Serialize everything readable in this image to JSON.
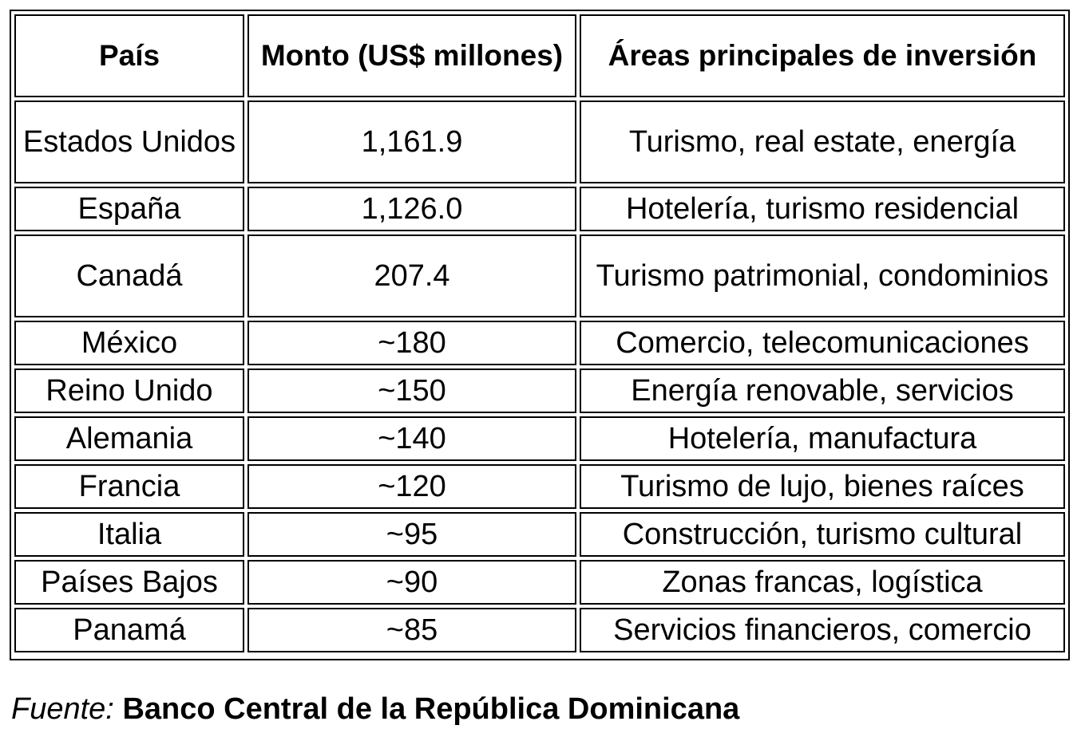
{
  "table": {
    "headers": [
      "País",
      "Monto (US$ millones)",
      "Áreas principales de inversión"
    ],
    "rows": [
      {
        "pais": "Estados Unidos",
        "monto": "1,161.9",
        "areas": "Turismo, real estate, energía"
      },
      {
        "pais": "España",
        "monto": "1,126.0",
        "areas": "Hotelería, turismo residencial"
      },
      {
        "pais": "Canadá",
        "monto": "207.4",
        "areas": "Turismo patrimonial, condominios"
      },
      {
        "pais": "México",
        "monto": "~180",
        "areas": "Comercio, telecomunicaciones"
      },
      {
        "pais": "Reino Unido",
        "monto": "~150",
        "areas": "Energía renovable, servicios"
      },
      {
        "pais": "Alemania",
        "monto": "~140",
        "areas": "Hotelería, manufactura"
      },
      {
        "pais": "Francia",
        "monto": "~120",
        "areas": "Turismo de lujo, bienes raíces"
      },
      {
        "pais": "Italia",
        "monto": "~95",
        "areas": "Construcción, turismo cultural"
      },
      {
        "pais": "Países Bajos",
        "monto": "~90",
        "areas": "Zonas francas, logística"
      },
      {
        "pais": "Panamá",
        "monto": "~85",
        "areas": "Servicios financieros, comercio"
      }
    ]
  },
  "source": {
    "label": "Fuente:",
    "name": "Banco Central de la República Dominicana"
  }
}
